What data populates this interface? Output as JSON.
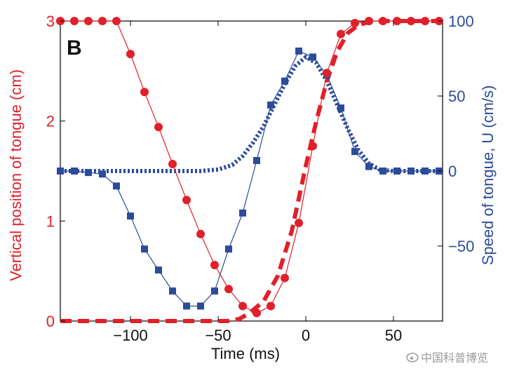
{
  "chart_data": {
    "type": "line",
    "panel_label": "B",
    "xlabel": "Time (ms)",
    "ylabel_left": "Vertical position of tongue  (cm)",
    "ylabel_right": "Speed of tongue, U (cm/s)",
    "xlim": [
      -140,
      78
    ],
    "ylim_left": [
      0,
      3
    ],
    "ylim_right": [
      -100,
      100
    ],
    "xticks": [
      -100,
      -50,
      0,
      50
    ],
    "xtick_labels": [
      "−100",
      "−50",
      "0",
      "50"
    ],
    "yticks_left": [
      0,
      1,
      2,
      3
    ],
    "ytick_labels_left": [
      "0",
      "1",
      "2",
      "3"
    ],
    "yticks_right": [
      -50,
      0,
      50,
      100
    ],
    "ytick_labels_right": [
      "−50",
      "0",
      "50",
      "100"
    ],
    "colors": {
      "position": "#e0202a",
      "speed": "#2b4b9b"
    },
    "series": [
      {
        "axis": "left",
        "style": "line-circles",
        "color": "#e0202a",
        "x": [
          -140,
          -132,
          -124,
          -116,
          -108,
          -100,
          -92,
          -84,
          -76,
          -68,
          -60,
          -52,
          -44,
          -36,
          -28,
          -20,
          -12,
          -4,
          4,
          12,
          20,
          28,
          36,
          44,
          52,
          60,
          68,
          76
        ],
        "y": [
          3.0,
          3.0,
          3.0,
          3.0,
          3.0,
          2.67,
          2.29,
          1.94,
          1.57,
          1.21,
          0.87,
          0.56,
          0.32,
          0.15,
          0.08,
          0.15,
          0.43,
          0.98,
          1.75,
          2.48,
          2.87,
          2.98,
          3.0,
          3.0,
          3.0,
          3.0,
          3.0,
          3.0
        ]
      },
      {
        "axis": "left",
        "style": "dashed",
        "color": "#e0202a",
        "x": [
          -140,
          -110,
          -80,
          -60,
          -45,
          -38,
          -32,
          -24,
          -16,
          -8,
          0,
          6,
          12,
          18,
          24,
          30,
          36,
          44,
          55,
          78
        ],
        "y": [
          0,
          0,
          0,
          0,
          0,
          0.02,
          0.08,
          0.2,
          0.45,
          0.9,
          1.55,
          2.0,
          2.4,
          2.7,
          2.88,
          2.96,
          2.99,
          3.0,
          3.0,
          3.0
        ]
      },
      {
        "axis": "right",
        "style": "line-squares",
        "color": "#2b4b9b",
        "x": [
          -140,
          -132,
          -124,
          -116,
          -108,
          -100,
          -92,
          -84,
          -76,
          -68,
          -60,
          -52,
          -44,
          -36,
          -28,
          -20,
          -12,
          -4,
          4,
          12,
          20,
          28,
          36,
          44,
          52,
          60,
          68,
          76
        ],
        "y": [
          0,
          0,
          -1,
          -2,
          -10,
          -30,
          -52,
          -66,
          -80,
          -90,
          -90,
          -80,
          -52,
          -28,
          7,
          44,
          60,
          80,
          76,
          64,
          42,
          13,
          3,
          0,
          0,
          0,
          0,
          0
        ]
      },
      {
        "axis": "right",
        "style": "dotted",
        "color": "#2b4b9b",
        "x": [
          -140,
          -110,
          -80,
          -60,
          -50,
          -42,
          -36,
          -30,
          -24,
          -18,
          -12,
          -6,
          0,
          6,
          12,
          18,
          24,
          30,
          36,
          42,
          50,
          60,
          78
        ],
        "y": [
          0,
          0,
          0,
          0,
          1,
          4,
          10,
          19,
          30,
          44,
          58,
          70,
          76,
          72,
          60,
          44,
          28,
          14,
          5,
          1,
          0,
          0,
          0
        ]
      }
    ]
  },
  "watermark": "中国科普博览"
}
